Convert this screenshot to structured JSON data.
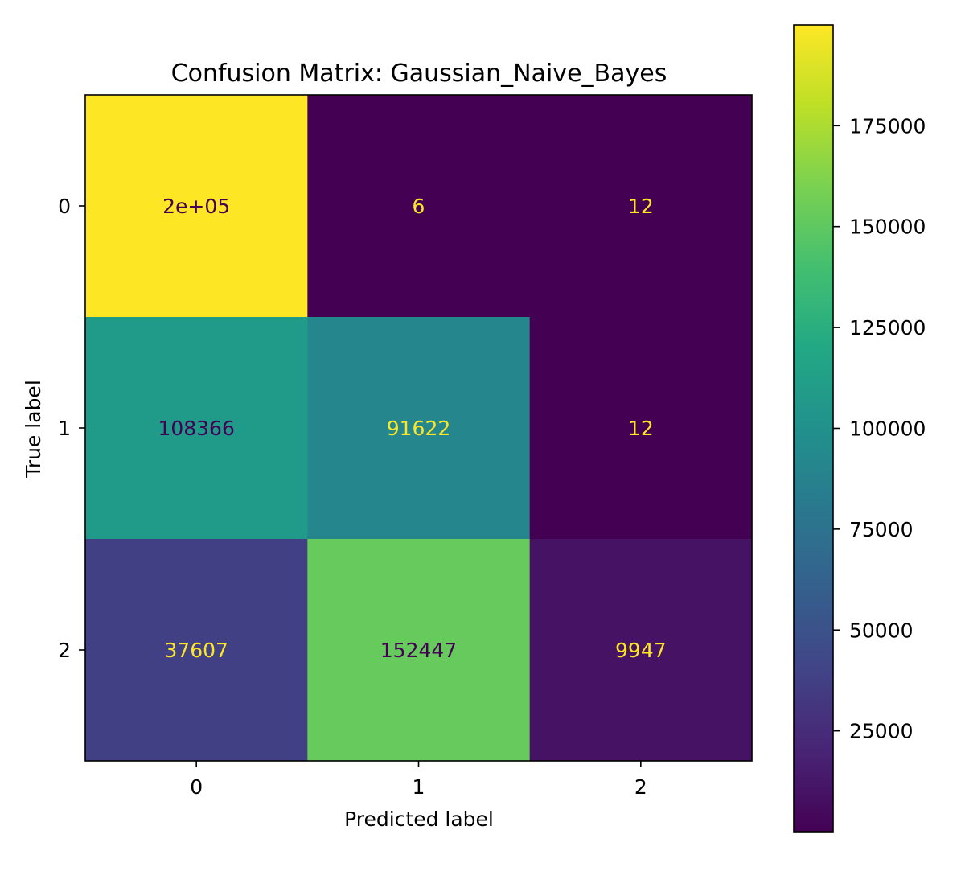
{
  "chart_data": {
    "type": "heatmap",
    "title": "Confusion Matrix: Gaussian_Naive_Bayes",
    "xlabel": "Predicted label",
    "ylabel": "True label",
    "x_categories": [
      "0",
      "1",
      "2"
    ],
    "y_categories": [
      "0",
      "1",
      "2"
    ],
    "values": [
      [
        199982,
        6,
        12
      ],
      [
        108366,
        91622,
        12
      ],
      [
        37607,
        152447,
        9947
      ]
    ],
    "cell_labels": [
      [
        "2e+05",
        "6",
        "12"
      ],
      [
        "108366",
        "91622",
        "12"
      ],
      [
        "37607",
        "152447",
        "9947"
      ]
    ],
    "colormap": "viridis",
    "colorbar": {
      "min": 6,
      "max": 199982,
      "ticks": [
        25000,
        50000,
        75000,
        100000,
        125000,
        150000,
        175000
      ],
      "tick_labels": [
        "25000",
        "50000",
        "75000",
        "100000",
        "125000",
        "150000",
        "175000"
      ]
    },
    "text_color_light": "#fde725",
    "text_color_dark": "#440154",
    "grid": false
  }
}
